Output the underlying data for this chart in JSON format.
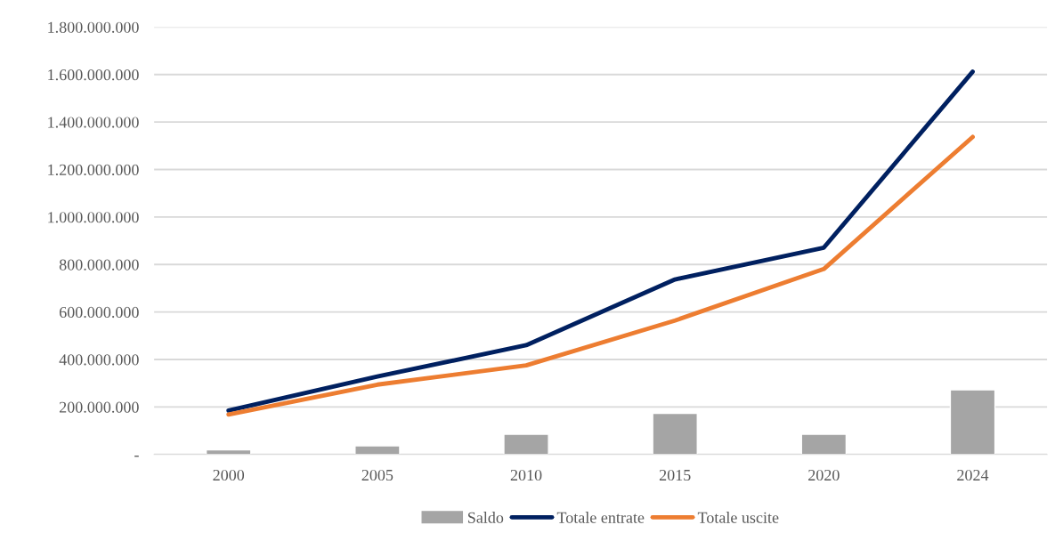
{
  "chart_data": {
    "type": "line",
    "categories": [
      "2000",
      "2005",
      "2010",
      "2015",
      "2020",
      "2024"
    ],
    "series": [
      {
        "name": "Saldo",
        "type": "bar",
        "color": "#a5a5a5",
        "values": [
          19000000,
          36000000,
          85000000,
          173000000,
          85000000,
          272000000
        ]
      },
      {
        "name": "Totale entrate",
        "color": "#002060",
        "values": [
          185000000,
          328000000,
          460000000,
          737000000,
          871000000,
          1612000000
        ]
      },
      {
        "name": "Totale uscite",
        "color": "#ed7d31",
        "values": [
          168000000,
          294000000,
          375000000,
          564000000,
          781000000,
          1337000000
        ]
      }
    ],
    "ylim": [
      0,
      1800000000
    ],
    "yticks": [
      {
        "value": 0,
        "label": "-"
      },
      {
        "value": 200000000,
        "label": "200.000.000"
      },
      {
        "value": 400000000,
        "label": "400.000.000"
      },
      {
        "value": 600000000,
        "label": "600.000.000"
      },
      {
        "value": 800000000,
        "label": "800.000.000"
      },
      {
        "value": 1000000000,
        "label": "1.000.000.000"
      },
      {
        "value": 1200000000,
        "label": "1.200.000.000"
      },
      {
        "value": 1400000000,
        "label": "1.400.000.000"
      },
      {
        "value": 1600000000,
        "label": "1.600.000.000"
      },
      {
        "value": 1800000000,
        "label": "1.800.000.000"
      }
    ],
    "grid": "y",
    "legend": "bottom",
    "marker": "none",
    "line_style": "solid"
  }
}
